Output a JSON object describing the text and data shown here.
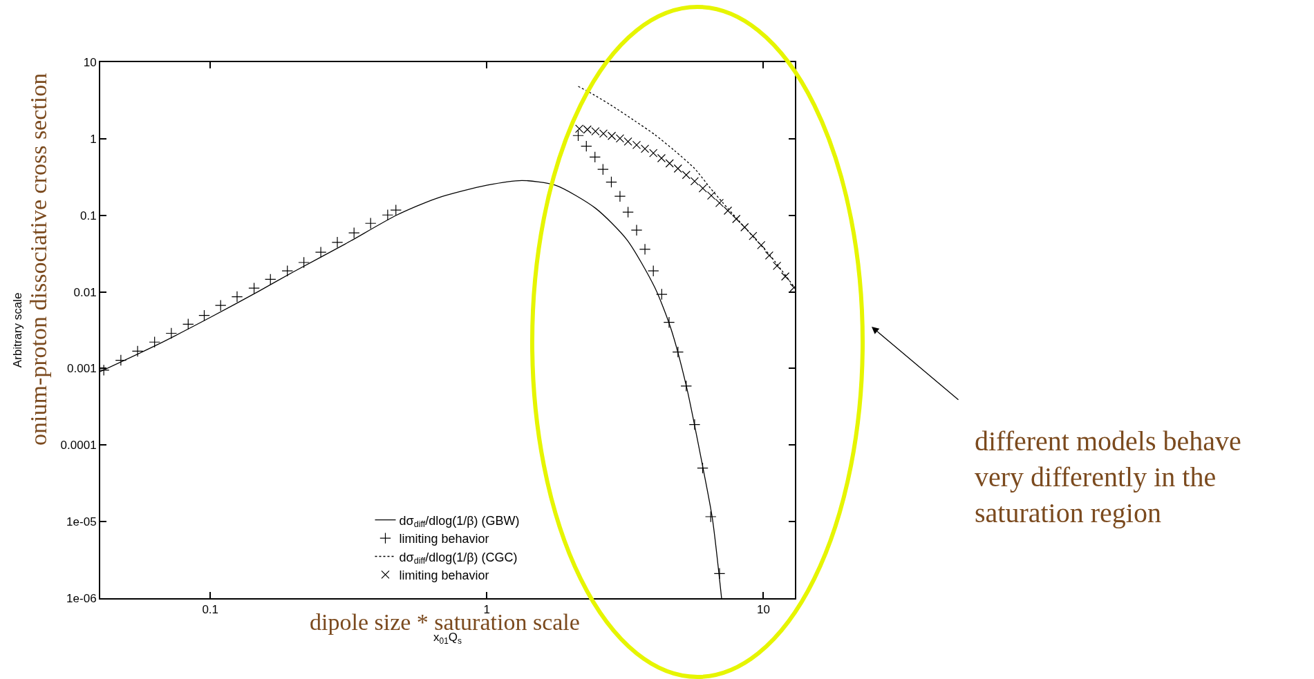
{
  "chart_data": {
    "type": "line",
    "xlabel": "x$_{01}$Q$_{s}$",
    "ylabel": "Arbitrary scale",
    "log": "xy",
    "grid": false,
    "legend": "bottom",
    "xlim": [
      0.04,
      13
    ],
    "xticks": [
      0.1,
      1,
      10
    ],
    "ylim": [
      1e-06,
      10
    ],
    "yticks": [
      10,
      1,
      0.1,
      0.01,
      0.001,
      {
        "value": 0.0001,
        "label": "0.0001"
      },
      {
        "value": 1e-05,
        "label": "1e-05"
      },
      {
        "value": 1e-06,
        "label": "1e-06"
      }
    ],
    "series": [
      {
        "name": "dσ$_{diff}$/dlog(1/β) (GBW)",
        "color": "#000000",
        "line_style": "solid",
        "marker": "none",
        "x": [
          0.04,
          0.065,
          0.1,
          0.149,
          0.2,
          0.308,
          0.473,
          0.659,
          1,
          1.34,
          1.77,
          2.47,
          3.21,
          4.05,
          4.62,
          5.27,
          6.03,
          6.54,
          7.06
        ],
        "values": [
          0.00091,
          0.00208,
          0.00464,
          0.0101,
          0.0183,
          0.0423,
          0.101,
          0.167,
          0.247,
          0.285,
          0.247,
          0.124,
          0.048,
          0.0114,
          0.0034,
          0.00058,
          5.3e-05,
          1.1e-05,
          1e-06
        ]
      },
      {
        "name": "limiting behavior",
        "type": "scatter",
        "color": "#000000",
        "marker": "cross",
        "x": [
          0.0412,
          0.0475,
          0.0546,
          0.0629,
          0.0723,
          0.0832,
          0.0951,
          0.109,
          0.125,
          0.144,
          0.165,
          0.19,
          0.218,
          0.251,
          0.288,
          0.331,
          0.38,
          0.438,
          0.469,
          2.14,
          2.29,
          2.46,
          2.63,
          2.82,
          3.03,
          3.24,
          3.48,
          3.73,
          4.0,
          4.29,
          4.56,
          4.91,
          5.26,
          5.64,
          6.03,
          6.45,
          6.94
        ],
        "values": [
          0.00095,
          0.00128,
          0.00168,
          0.00221,
          0.00288,
          0.00379,
          0.00493,
          0.00665,
          0.00865,
          0.0112,
          0.0146,
          0.0188,
          0.0242,
          0.033,
          0.0444,
          0.059,
          0.0787,
          0.101,
          0.117,
          1.1,
          0.8,
          0.577,
          0.398,
          0.272,
          0.177,
          0.11,
          0.064,
          0.036,
          0.0188,
          0.0093,
          0.004,
          0.00164,
          0.00059,
          0.000185,
          5e-05,
          1.16e-05,
          2.1e-06
        ]
      },
      {
        "name": "dσ$_{diff}$/dlog(1/β) (CGC)",
        "color": "#000000",
        "line_style": "dotted",
        "marker": "none",
        "x": [
          2.14,
          2.38,
          2.81,
          3.43,
          4.05,
          4.77,
          5.64,
          6.44,
          7.11,
          8.11,
          9.26,
          10.6,
          12.9
        ],
        "values": [
          4.83,
          3.94,
          2.75,
          1.71,
          1.13,
          0.7,
          0.408,
          0.225,
          0.148,
          0.0867,
          0.0507,
          0.0296,
          0.0117
        ]
      },
      {
        "name": "limiting behavior",
        "type": "scatter",
        "color": "#000000",
        "marker": "x",
        "x": [
          2.16,
          2.31,
          2.47,
          2.64,
          2.83,
          3.03,
          3.24,
          3.48,
          3.73,
          4.0,
          4.28,
          4.58,
          4.91,
          5.26,
          5.64,
          6.04,
          6.48,
          6.94,
          7.44,
          7.98,
          8.55,
          9.17,
          9.82,
          10.5,
          11.2,
          12.0,
          12.9
        ],
        "values": [
          1.35,
          1.32,
          1.25,
          1.17,
          1.09,
          1.01,
          0.92,
          0.83,
          0.74,
          0.65,
          0.557,
          0.477,
          0.408,
          0.337,
          0.279,
          0.225,
          0.181,
          0.145,
          0.115,
          0.0896,
          0.0698,
          0.0537,
          0.0408,
          0.0299,
          0.0219,
          0.0159,
          0.0114
        ]
      }
    ],
    "annotations": [
      "onium-proton dissociative cross section",
      "dipole size * saturation scale",
      "different models behave\nvery differently in the\nsaturation region"
    ]
  }
}
